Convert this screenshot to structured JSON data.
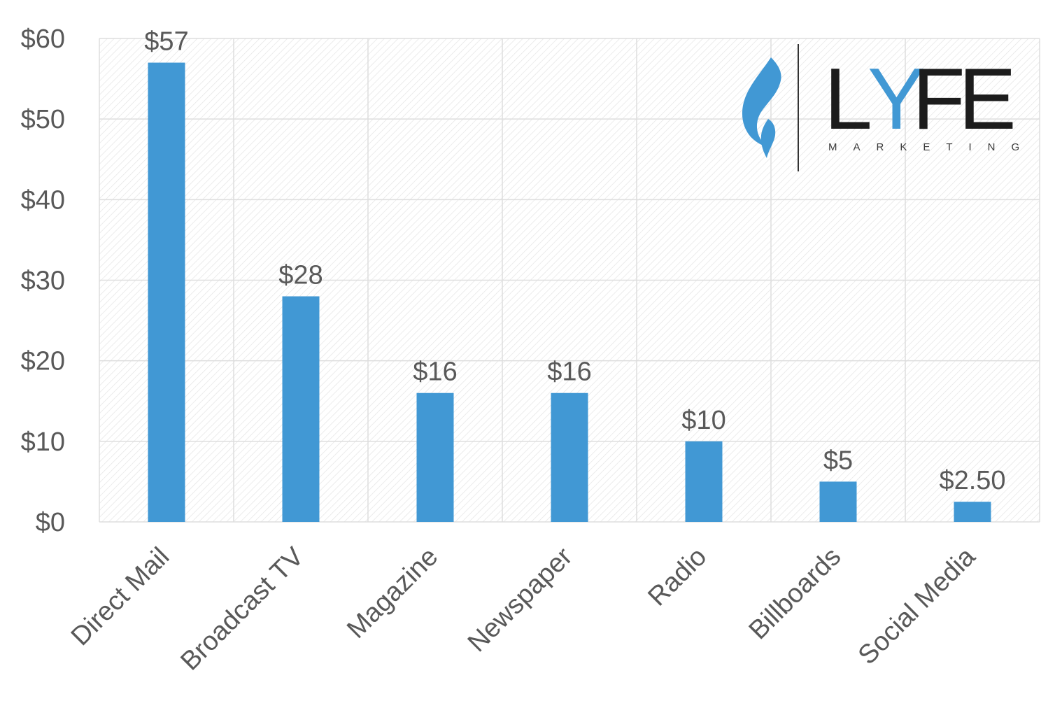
{
  "chart_data": {
    "type": "bar",
    "categories": [
      "Direct Mail",
      "Broadcast TV",
      "Magazine",
      "Newspaper",
      "Radio",
      "Billboards",
      "Social Media"
    ],
    "values": [
      57,
      28,
      16,
      16,
      10,
      5,
      2.5
    ],
    "data_labels": [
      "$57",
      "$28",
      "$16",
      "$16",
      "$10",
      "$5",
      "$2.50"
    ],
    "yticks": [
      0,
      10,
      20,
      30,
      40,
      50,
      60
    ],
    "ytick_labels": [
      "$0",
      "$10",
      "$20",
      "$30",
      "$40",
      "$50",
      "$60"
    ],
    "ylim": [
      0,
      60
    ],
    "title": "",
    "xlabel": "",
    "ylabel": "",
    "grid": true,
    "legend": "none",
    "colors": {
      "bar": "#4198d4",
      "grid": "#dedede",
      "hatch": "#e3e3e3",
      "text": "#595959"
    }
  },
  "logo": {
    "letters": [
      "L",
      "Y",
      "F",
      "E"
    ],
    "letter_colors": [
      "#1c1c1c",
      "#4198d4",
      "#1c1c1c",
      "#1c1c1c"
    ],
    "tagline": "MARKETING",
    "icon": "flame-icon"
  }
}
